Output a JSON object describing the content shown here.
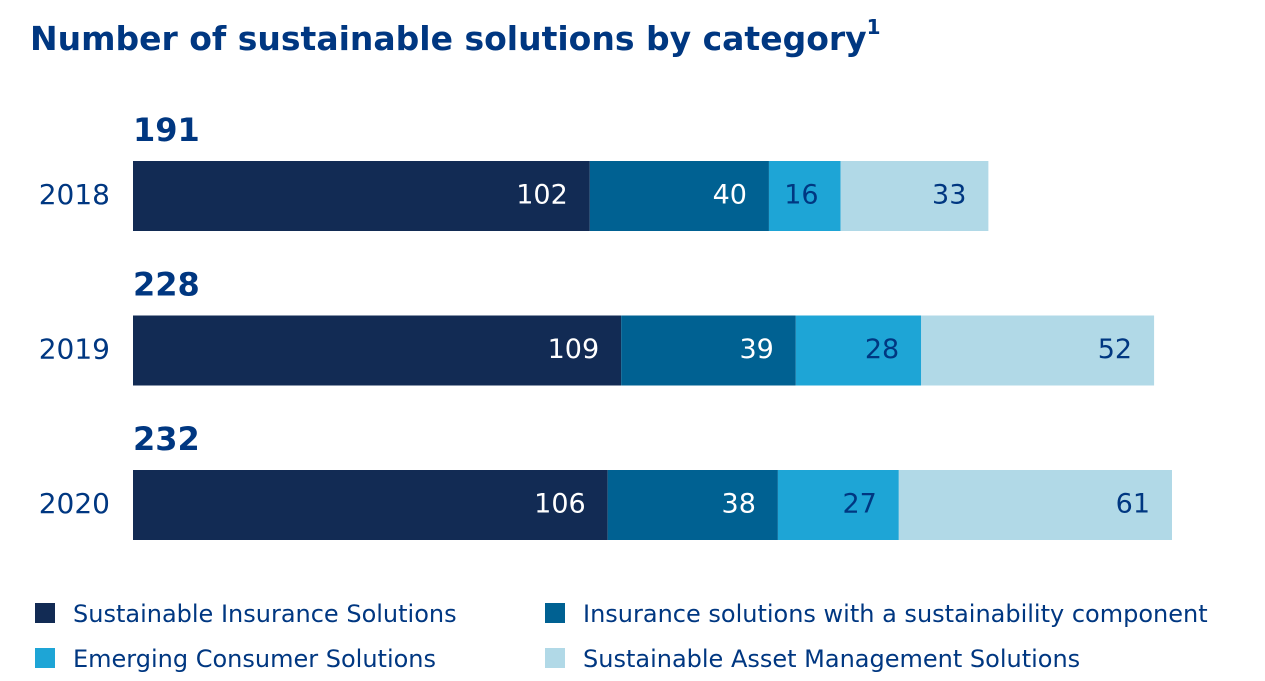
{
  "chart_data": {
    "type": "stacked-bar-horizontal",
    "title": "Number of sustainable solutions by category",
    "title_footnote": "1",
    "categories": [
      "2018",
      "2019",
      "2020"
    ],
    "totals": [
      191,
      228,
      232
    ],
    "series": [
      {
        "name": "Sustainable Insurance Solutions",
        "color": "#122b54",
        "values": [
          102,
          109,
          106
        ]
      },
      {
        "name": "Insurance solutions with a sustainability component",
        "color": "#006192",
        "values": [
          40,
          39,
          38
        ]
      },
      {
        "name": "Emerging Consumer Solutions",
        "color": "#1ea5d6",
        "values": [
          16,
          28,
          27
        ]
      },
      {
        "name": "Sustainable Asset Management Solutions",
        "color": "#b1d9e7",
        "values": [
          33,
          52,
          61
        ]
      }
    ]
  }
}
